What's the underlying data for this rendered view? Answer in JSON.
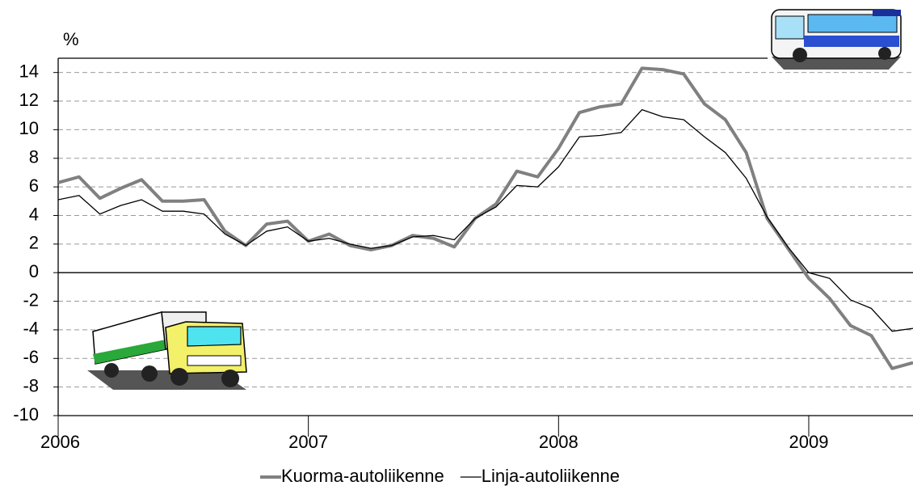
{
  "chart_data": {
    "type": "line",
    "y_label": "%",
    "x": [
      0,
      1,
      2,
      3,
      4,
      5,
      6,
      7,
      8,
      9,
      10,
      11,
      12,
      13,
      14,
      15,
      16,
      17,
      18,
      19,
      20,
      21,
      22,
      23,
      24,
      25,
      26,
      27,
      28,
      29,
      30,
      31,
      32,
      33,
      34,
      35,
      36,
      37,
      38,
      39,
      40,
      41
    ],
    "series": [
      {
        "name": "Kuorma-autoliikenne",
        "color": "#808080",
        "width": 4,
        "values": [
          6.3,
          6.7,
          5.2,
          5.9,
          6.5,
          5.0,
          5.0,
          5.1,
          2.9,
          1.9,
          3.4,
          3.6,
          2.2,
          2.7,
          1.9,
          1.6,
          1.9,
          2.6,
          2.4,
          1.8,
          3.8,
          4.8,
          7.1,
          6.7,
          8.7,
          11.2,
          11.6,
          11.8,
          14.3,
          14.2,
          13.9,
          11.8,
          10.7,
          8.4,
          3.8,
          1.7,
          -0.4,
          -1.8,
          -3.7,
          -4.4,
          -6.7,
          -6.3
        ]
      },
      {
        "name": "Linja-autoliikenne",
        "color": "#000000",
        "width": 1.3,
        "values": [
          5.1,
          5.4,
          4.1,
          4.7,
          5.1,
          4.3,
          4.3,
          4.1,
          2.7,
          1.9,
          2.9,
          3.2,
          2.2,
          2.4,
          2.0,
          1.7,
          1.9,
          2.5,
          2.6,
          2.3,
          3.8,
          4.6,
          6.1,
          6.0,
          7.4,
          9.5,
          9.6,
          9.8,
          11.4,
          10.9,
          10.7,
          9.5,
          8.4,
          6.6,
          3.9,
          1.8,
          0.0,
          -0.4,
          -1.9,
          -2.5,
          -4.1,
          -3.9
        ]
      }
    ],
    "xlim": [
      0,
      41
    ],
    "xticks": [
      {
        "value": 0,
        "label": "2006"
      },
      {
        "value": 12,
        "label": "2007"
      },
      {
        "value": 24,
        "label": "2008"
      },
      {
        "value": 36,
        "label": "2009"
      }
    ],
    "ylim": [
      -10,
      15
    ],
    "yticks": [
      -10,
      -8,
      -6,
      -4,
      -2,
      0,
      2,
      4,
      6,
      8,
      10,
      12,
      14
    ],
    "grid": true,
    "legend": "bottom"
  }
}
